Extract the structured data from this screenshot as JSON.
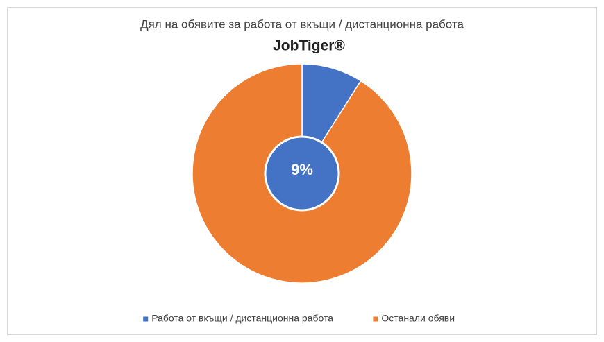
{
  "chart_data": {
    "type": "pie",
    "title": "Дял на обявите за работа от вкъщи / дистанционна работа",
    "logo": "JobTiger®",
    "categories": [
      "Работа от вкъщи / дистанционна работа",
      "Останали обяви"
    ],
    "values": [
      9,
      91
    ],
    "value_labels": [
      "9%",
      null
    ],
    "colors": [
      "#4472c4",
      "#ed7d31"
    ],
    "legend": "bottom"
  }
}
